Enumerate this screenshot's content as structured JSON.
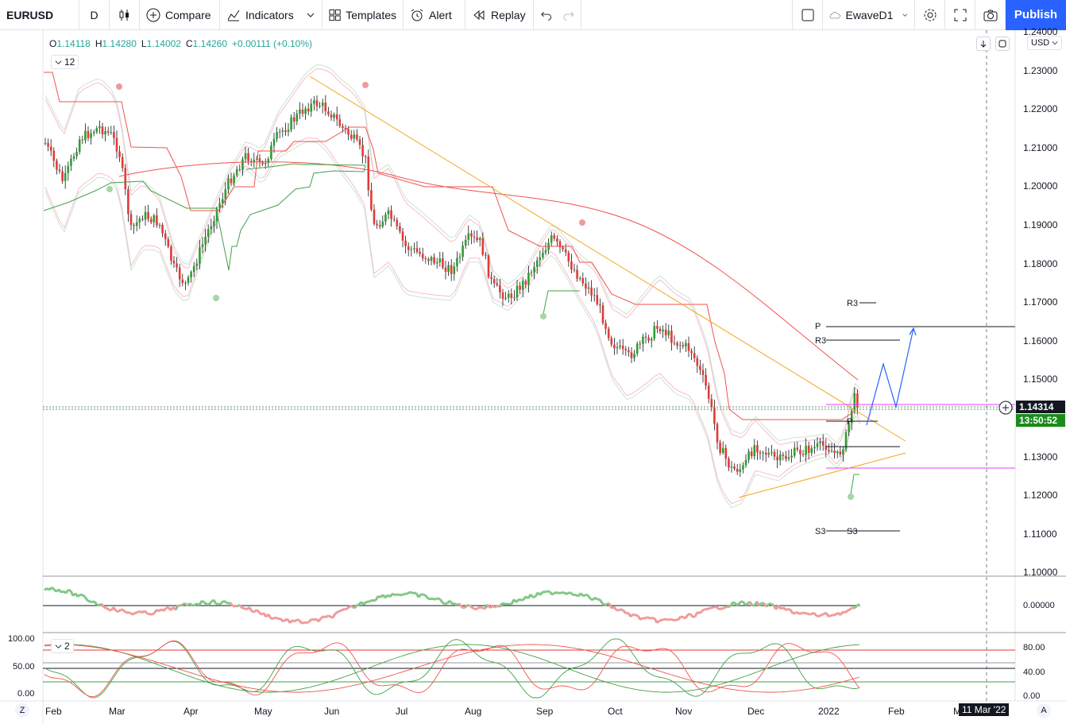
{
  "toolbar": {
    "symbol": "EURUSD",
    "interval": "D",
    "compare": "Compare",
    "indicators": "Indicators",
    "templates": "Templates",
    "alert": "Alert",
    "replay": "Replay",
    "layout_name": "EwaveD1",
    "publish": "Publish"
  },
  "legend": {
    "open_k": "O",
    "open": "1.14118",
    "high_k": "H",
    "high": "1.14280",
    "low_k": "L",
    "low": "1.14002",
    "close_k": "C",
    "close": "1.14260",
    "change": "+0.00111 (+0.10%)"
  },
  "main_tag": "12",
  "stoch_tag": "2",
  "currency": "USD",
  "price_axis": [
    "1.24000",
    "1.23000",
    "1.22000",
    "1.21000",
    "1.20000",
    "1.19000",
    "1.18000",
    "1.17000",
    "1.16000",
    "1.15000",
    "1.14000",
    "1.13000",
    "1.12000",
    "1.11000",
    "1.10000"
  ],
  "current_price": "1.14314",
  "countdown": "13:50:52",
  "osc_axis": "0.00000",
  "stoch_right_axis": [
    "80.00",
    "40.00",
    "0.00"
  ],
  "stoch_left_axis": [
    "100.00",
    "50.00",
    "0.00"
  ],
  "time_axis": [
    "Feb",
    "Mar",
    "Apr",
    "May",
    "Jun",
    "Jul",
    "Aug",
    "Sep",
    "Oct",
    "Nov",
    "Dec",
    "2022",
    "Feb",
    "M"
  ],
  "crosshair_date": "11 Mar '22",
  "pivot_labels": {
    "r3_a": "R3",
    "p": "P",
    "r3_b": "R3",
    "p_small": "P",
    "s3_a": "S3",
    "s3_b": "S3"
  },
  "bottom_left": "Z",
  "bottom_right": "A",
  "colors": {
    "up": "#089981",
    "candle_up": "#2e9e2e",
    "down": "#e53935",
    "accent": "#2962ff",
    "orange": "#f5a623",
    "pink": "#e040fb",
    "current": "#131722",
    "countdown_bg": "#1b8b1b"
  }
}
